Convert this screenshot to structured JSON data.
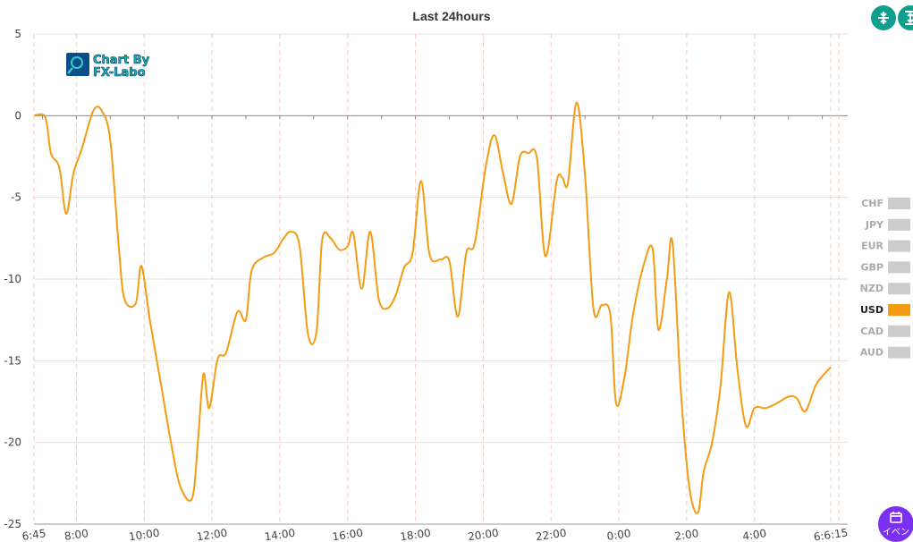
{
  "toolbar": {
    "collapse_icon": "collapse-icon",
    "expand_icon": "expand-icon",
    "event_button_label": "イベン",
    "event_icon": "calendar-icon"
  },
  "logo": {
    "line1": "Chart By",
    "line2": "FX-Labo"
  },
  "legend": {
    "items": [
      {
        "label": "CHF",
        "active": false
      },
      {
        "label": "JPY",
        "active": false
      },
      {
        "label": "EUR",
        "active": false
      },
      {
        "label": "GBP",
        "active": false
      },
      {
        "label": "NZD",
        "active": false
      },
      {
        "label": "USD",
        "active": true
      },
      {
        "label": "CAD",
        "active": false
      },
      {
        "label": "AUD",
        "active": false
      }
    ],
    "active_color": "#f39c12",
    "inactive_color": "#cccccc"
  },
  "chart_data": {
    "type": "line",
    "title": "Last 24hours",
    "ylim": [
      -25,
      5
    ],
    "yticks": [
      5,
      0,
      -5,
      -10,
      -15,
      -20,
      -25
    ],
    "x_domain": [
      "6:45",
      "6:45 (+1 day)"
    ],
    "x_tick_labels": [
      {
        "label": "6:45",
        "t": "06:45"
      },
      {
        "label": "8:00",
        "t": "08:00"
      },
      {
        "label": "10:00",
        "t": "10:00"
      },
      {
        "label": "12:00",
        "t": "12:00"
      },
      {
        "label": "14:00",
        "t": "14:00"
      },
      {
        "label": "16:00",
        "t": "16:00"
      },
      {
        "label": "18:00",
        "t": "18:00"
      },
      {
        "label": "20:00",
        "t": "20:00"
      },
      {
        "label": "22:00",
        "t": "22:00"
      },
      {
        "label": "0:00",
        "t": "00:00+1"
      },
      {
        "label": "2:00",
        "t": "02:00+1"
      },
      {
        "label": "4:00",
        "t": "04:00+1"
      },
      {
        "label": "6:6:15",
        "t": "06:15+1"
      }
    ],
    "series": [
      {
        "name": "USD",
        "color": "#f39c12",
        "points": [
          [
            "06:45",
            0.0
          ],
          [
            "07:05",
            -0.1
          ],
          [
            "07:15",
            -2.3
          ],
          [
            "07:30",
            -3.2
          ],
          [
            "07:42",
            -6.0
          ],
          [
            "07:55",
            -3.5
          ],
          [
            "08:10",
            -2.0
          ],
          [
            "08:30",
            0.3
          ],
          [
            "08:45",
            0.3
          ],
          [
            "09:00",
            -1.5
          ],
          [
            "09:15",
            -8.0
          ],
          [
            "09:25",
            -11.2
          ],
          [
            "09:45",
            -11.5
          ],
          [
            "09:55",
            -9.2
          ],
          [
            "10:10",
            -12.5
          ],
          [
            "10:30",
            -16.5
          ],
          [
            "10:50",
            -20.5
          ],
          [
            "11:05",
            -22.8
          ],
          [
            "11:25",
            -23.4
          ],
          [
            "11:35",
            -20.0
          ],
          [
            "11:45",
            -15.8
          ],
          [
            "11:55",
            -17.9
          ],
          [
            "12:10",
            -14.9
          ],
          [
            "12:25",
            -14.5
          ],
          [
            "12:45",
            -12.0
          ],
          [
            "13:00",
            -12.5
          ],
          [
            "13:10",
            -9.5
          ],
          [
            "13:30",
            -8.7
          ],
          [
            "13:50",
            -8.4
          ],
          [
            "14:05",
            -7.6
          ],
          [
            "14:20",
            -7.1
          ],
          [
            "14:35",
            -8.0
          ],
          [
            "14:50",
            -13.4
          ],
          [
            "15:05",
            -13.2
          ],
          [
            "15:15",
            -7.6
          ],
          [
            "15:30",
            -7.5
          ],
          [
            "15:45",
            -8.2
          ],
          [
            "16:00",
            -8.0
          ],
          [
            "16:10",
            -7.2
          ],
          [
            "16:25",
            -10.6
          ],
          [
            "16:40",
            -7.1
          ],
          [
            "16:55",
            -11.2
          ],
          [
            "17:10",
            -11.8
          ],
          [
            "17:25",
            -11.0
          ],
          [
            "17:40",
            -9.3
          ],
          [
            "17:55",
            -8.4
          ],
          [
            "18:10",
            -4.0
          ],
          [
            "18:25",
            -8.5
          ],
          [
            "18:45",
            -8.8
          ],
          [
            "19:00",
            -8.9
          ],
          [
            "19:15",
            -12.3
          ],
          [
            "19:30",
            -8.4
          ],
          [
            "19:45",
            -7.8
          ],
          [
            "20:05",
            -3.0
          ],
          [
            "20:20",
            -1.2
          ],
          [
            "20:35",
            -3.5
          ],
          [
            "20:50",
            -5.4
          ],
          [
            "21:05",
            -2.5
          ],
          [
            "21:20",
            -2.3
          ],
          [
            "21:35",
            -2.6
          ],
          [
            "21:50",
            -8.6
          ],
          [
            "22:10",
            -4.0
          ],
          [
            "22:20",
            -3.8
          ],
          [
            "22:30",
            -4.1
          ],
          [
            "22:45",
            0.8
          ],
          [
            "23:00",
            -3.6
          ],
          [
            "23:15",
            -11.8
          ],
          [
            "23:30",
            -11.6
          ],
          [
            "23:45",
            -12.2
          ],
          [
            "23:55",
            -17.6
          ],
          [
            "00:10",
            -16.0
          ],
          [
            "00:25",
            -12.2
          ],
          [
            "00:45",
            -9.0
          ],
          [
            "01:00",
            -8.2
          ],
          [
            "01:10",
            -13.1
          ],
          [
            "01:25",
            -10.0
          ],
          [
            "01:35",
            -7.8
          ],
          [
            "01:50",
            -17.0
          ],
          [
            "02:05",
            -22.8
          ],
          [
            "02:20",
            -24.3
          ],
          [
            "02:30",
            -21.8
          ],
          [
            "02:45",
            -20.0
          ],
          [
            "03:00",
            -16.5
          ],
          [
            "03:15",
            -10.8
          ],
          [
            "03:30",
            -15.6
          ],
          [
            "03:45",
            -19.0
          ],
          [
            "04:00",
            -17.9
          ],
          [
            "04:20",
            -17.9
          ],
          [
            "04:40",
            -17.6
          ],
          [
            "05:00",
            -17.2
          ],
          [
            "05:15",
            -17.3
          ],
          [
            "05:30",
            -18.1
          ],
          [
            "05:50",
            -16.4
          ],
          [
            "06:15",
            -15.4
          ]
        ]
      }
    ],
    "grid": true,
    "legend_position": "right"
  }
}
